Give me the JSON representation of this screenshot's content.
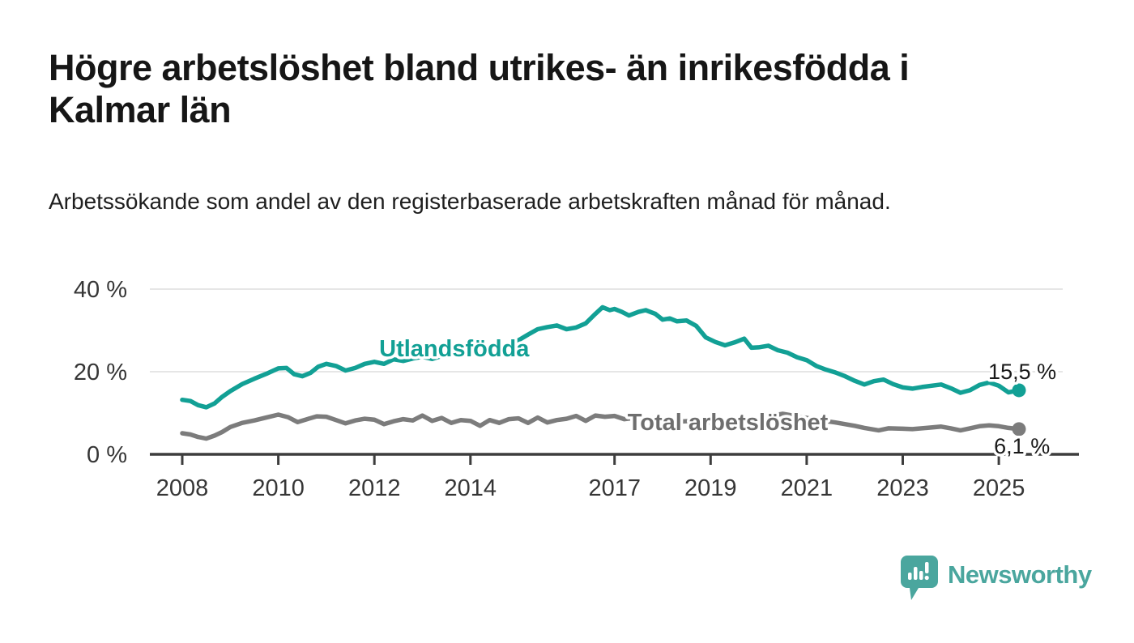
{
  "header": {
    "title": "Högre arbetslöshet bland utrikes- än inrikesfödda i Kalmar län",
    "subtitle": "Arbetssökande som andel av den registerbaserade arbetskraften månad för månad."
  },
  "chart_data": {
    "type": "line",
    "x_unit": "decimal_year",
    "x_ticks": [
      2008,
      2010,
      2012,
      2014,
      2017,
      2019,
      2021,
      2023,
      2025
    ],
    "x_tick_labels": [
      "2008",
      "2010",
      "2012",
      "2014",
      "2017",
      "2019",
      "2021",
      "2023",
      "2025"
    ],
    "y_ticks": [
      0,
      20,
      40
    ],
    "y_tick_labels": [
      "0 %",
      "20 %",
      "40 %"
    ],
    "ylim": [
      0,
      43
    ],
    "xlim": [
      2007.3,
      2026.6
    ],
    "grid": "horizontal-only",
    "legend_position": "inline-labels-on-chart",
    "series": [
      {
        "id": "utlandsfodda",
        "name": "Utlandsfödda",
        "color": "#12a095",
        "label_color": "#12a095",
        "label_anchor": [
          2012.1,
          23.7
        ],
        "end_value": 15.5,
        "end_label": "15,5 %",
        "end_label_anchor": [
          2024.78,
          18.2
        ],
        "points": [
          [
            2008.0,
            13.2
          ],
          [
            2008.17,
            12.9
          ],
          [
            2008.33,
            11.9
          ],
          [
            2008.5,
            11.4
          ],
          [
            2008.67,
            12.3
          ],
          [
            2008.83,
            13.9
          ],
          [
            2009.0,
            15.3
          ],
          [
            2009.25,
            17.0
          ],
          [
            2009.5,
            18.3
          ],
          [
            2009.75,
            19.5
          ],
          [
            2010.0,
            20.8
          ],
          [
            2010.17,
            20.9
          ],
          [
            2010.33,
            19.4
          ],
          [
            2010.5,
            18.9
          ],
          [
            2010.67,
            19.7
          ],
          [
            2010.83,
            21.2
          ],
          [
            2011.0,
            21.9
          ],
          [
            2011.2,
            21.4
          ],
          [
            2011.4,
            20.3
          ],
          [
            2011.6,
            20.9
          ],
          [
            2011.8,
            21.9
          ],
          [
            2012.0,
            22.4
          ],
          [
            2012.2,
            21.9
          ],
          [
            2012.4,
            23.0
          ],
          [
            2012.6,
            22.6
          ],
          [
            2012.8,
            23.2
          ],
          [
            2013.0,
            23.6
          ],
          [
            2013.2,
            23.1
          ],
          [
            2013.4,
            23.8
          ],
          [
            2013.6,
            24.3
          ],
          [
            2013.8,
            24.0
          ],
          [
            2014.0,
            24.8
          ],
          [
            2014.2,
            25.2
          ],
          [
            2014.4,
            25.0
          ],
          [
            2014.6,
            25.8
          ],
          [
            2014.8,
            26.5
          ],
          [
            2015.0,
            27.6
          ],
          [
            2015.2,
            29.0
          ],
          [
            2015.4,
            30.3
          ],
          [
            2015.6,
            30.8
          ],
          [
            2015.8,
            31.2
          ],
          [
            2016.0,
            30.3
          ],
          [
            2016.2,
            30.7
          ],
          [
            2016.4,
            31.7
          ],
          [
            2016.6,
            34.0
          ],
          [
            2016.75,
            35.6
          ],
          [
            2016.9,
            34.9
          ],
          [
            2017.0,
            35.2
          ],
          [
            2017.15,
            34.5
          ],
          [
            2017.3,
            33.6
          ],
          [
            2017.5,
            34.5
          ],
          [
            2017.65,
            34.9
          ],
          [
            2017.85,
            34.0
          ],
          [
            2018.0,
            32.6
          ],
          [
            2018.15,
            32.9
          ],
          [
            2018.3,
            32.2
          ],
          [
            2018.5,
            32.4
          ],
          [
            2018.7,
            31.1
          ],
          [
            2018.9,
            28.3
          ],
          [
            2019.1,
            27.2
          ],
          [
            2019.3,
            26.4
          ],
          [
            2019.5,
            27.1
          ],
          [
            2019.7,
            28.0
          ],
          [
            2019.85,
            25.8
          ],
          [
            2020.0,
            25.9
          ],
          [
            2020.2,
            26.3
          ],
          [
            2020.4,
            25.2
          ],
          [
            2020.6,
            24.6
          ],
          [
            2020.8,
            23.5
          ],
          [
            2021.0,
            22.8
          ],
          [
            2021.2,
            21.4
          ],
          [
            2021.4,
            20.5
          ],
          [
            2021.6,
            19.8
          ],
          [
            2021.8,
            18.9
          ],
          [
            2022.0,
            17.8
          ],
          [
            2022.2,
            16.9
          ],
          [
            2022.4,
            17.7
          ],
          [
            2022.6,
            18.1
          ],
          [
            2022.8,
            17.0
          ],
          [
            2023.0,
            16.2
          ],
          [
            2023.2,
            15.9
          ],
          [
            2023.4,
            16.3
          ],
          [
            2023.6,
            16.6
          ],
          [
            2023.8,
            16.9
          ],
          [
            2024.0,
            16.0
          ],
          [
            2024.2,
            14.9
          ],
          [
            2024.4,
            15.5
          ],
          [
            2024.6,
            16.8
          ],
          [
            2024.8,
            17.4
          ],
          [
            2025.0,
            16.6
          ],
          [
            2025.2,
            15.0
          ],
          [
            2025.42,
            15.5
          ]
        ]
      },
      {
        "id": "total",
        "name": "Total arbetslöshet",
        "color": "#7c7c7c",
        "label_color": "#6e6e6e",
        "label_anchor": [
          2017.27,
          5.9
        ],
        "end_value": 6.1,
        "end_label": "6,1 %",
        "end_label_anchor": [
          2024.9,
          0.2
        ],
        "points": [
          [
            2008.0,
            5.1
          ],
          [
            2008.17,
            4.8
          ],
          [
            2008.33,
            4.2
          ],
          [
            2008.5,
            3.8
          ],
          [
            2008.67,
            4.5
          ],
          [
            2008.83,
            5.4
          ],
          [
            2009.0,
            6.6
          ],
          [
            2009.25,
            7.6
          ],
          [
            2009.5,
            8.2
          ],
          [
            2009.75,
            8.9
          ],
          [
            2010.0,
            9.6
          ],
          [
            2010.2,
            9.0
          ],
          [
            2010.4,
            7.8
          ],
          [
            2010.6,
            8.5
          ],
          [
            2010.8,
            9.2
          ],
          [
            2011.0,
            9.1
          ],
          [
            2011.2,
            8.3
          ],
          [
            2011.4,
            7.5
          ],
          [
            2011.6,
            8.2
          ],
          [
            2011.8,
            8.6
          ],
          [
            2012.0,
            8.4
          ],
          [
            2012.2,
            7.3
          ],
          [
            2012.4,
            8.0
          ],
          [
            2012.6,
            8.5
          ],
          [
            2012.8,
            8.2
          ],
          [
            2013.0,
            9.4
          ],
          [
            2013.2,
            8.1
          ],
          [
            2013.4,
            8.8
          ],
          [
            2013.6,
            7.6
          ],
          [
            2013.8,
            8.3
          ],
          [
            2014.0,
            8.1
          ],
          [
            2014.2,
            6.9
          ],
          [
            2014.4,
            8.3
          ],
          [
            2014.6,
            7.6
          ],
          [
            2014.8,
            8.5
          ],
          [
            2015.0,
            8.7
          ],
          [
            2015.2,
            7.6
          ],
          [
            2015.4,
            8.9
          ],
          [
            2015.6,
            7.7
          ],
          [
            2015.8,
            8.3
          ],
          [
            2016.0,
            8.6
          ],
          [
            2016.2,
            9.3
          ],
          [
            2016.4,
            8.1
          ],
          [
            2016.6,
            9.4
          ],
          [
            2016.8,
            9.1
          ],
          [
            2017.0,
            9.3
          ],
          [
            2017.2,
            8.5
          ],
          [
            2017.4,
            8.8
          ],
          [
            2017.6,
            8.4
          ],
          [
            2017.8,
            8.7
          ],
          [
            2018.0,
            8.2
          ],
          [
            2018.3,
            7.9
          ],
          [
            2018.6,
            8.1
          ],
          [
            2018.9,
            7.7
          ],
          [
            2019.2,
            7.5
          ],
          [
            2019.5,
            7.8
          ],
          [
            2019.8,
            7.6
          ],
          [
            2020.0,
            7.7
          ],
          [
            2020.3,
            9.4
          ],
          [
            2020.5,
            9.8
          ],
          [
            2020.8,
            9.2
          ],
          [
            2021.0,
            8.8
          ],
          [
            2021.3,
            8.2
          ],
          [
            2021.6,
            7.7
          ],
          [
            2021.9,
            7.1
          ],
          [
            2022.0,
            6.9
          ],
          [
            2022.2,
            6.4
          ],
          [
            2022.5,
            5.8
          ],
          [
            2022.7,
            6.3
          ],
          [
            2023.0,
            6.2
          ],
          [
            2023.2,
            6.1
          ],
          [
            2023.5,
            6.4
          ],
          [
            2023.8,
            6.7
          ],
          [
            2024.0,
            6.3
          ],
          [
            2024.2,
            5.8
          ],
          [
            2024.4,
            6.3
          ],
          [
            2024.6,
            6.8
          ],
          [
            2024.8,
            7.0
          ],
          [
            2025.0,
            6.8
          ],
          [
            2025.2,
            6.4
          ],
          [
            2025.42,
            6.1
          ]
        ]
      }
    ]
  },
  "footer": {
    "brand": "Newsworthy",
    "logo_icon": "newsworthy-speech-bubble-bar-chart-icon"
  },
  "colors": {
    "accent_teal": "#12a095",
    "line_gray": "#7c7c7c",
    "series_label_gray": "#6e6e6e",
    "axis": "#3d3d3d",
    "gridline": "#e3e3e3",
    "tick_label": "#363636",
    "logo_teal": "#4aa69e",
    "title_text": "#161616"
  }
}
